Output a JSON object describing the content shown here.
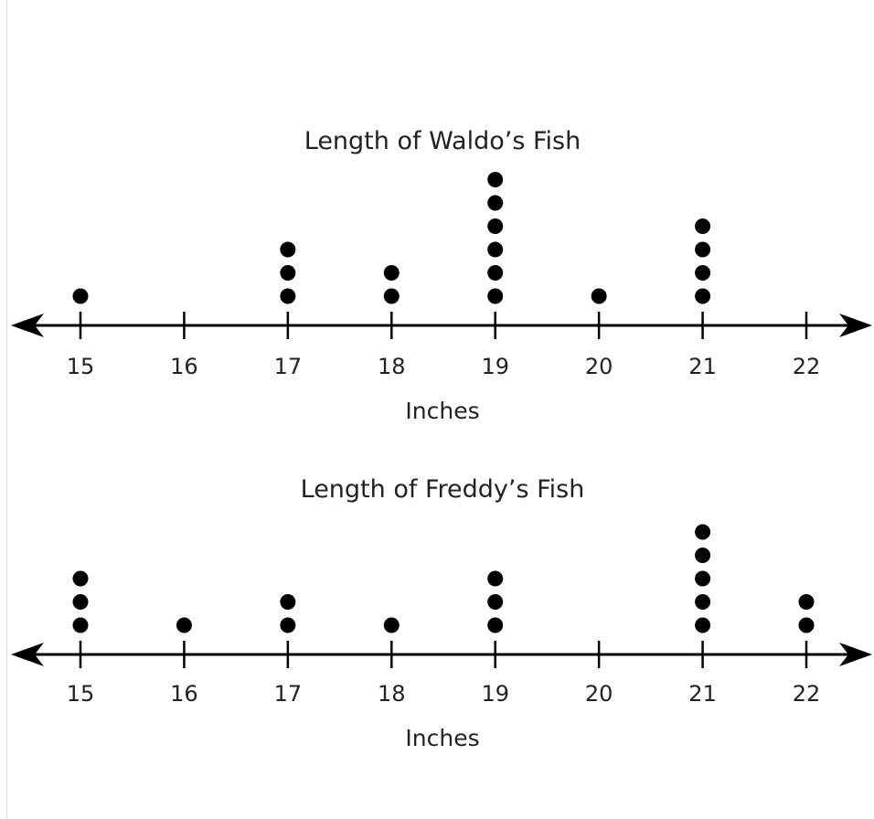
{
  "chart_data": [
    {
      "type": "dot-plot",
      "title": "Length of Waldo’s Fish",
      "xlabel": "Inches",
      "categories": [
        15,
        16,
        17,
        18,
        19,
        20,
        21,
        22
      ],
      "tick_labels": [
        "15",
        "16",
        "17",
        "18",
        "19",
        "20",
        "21",
        "22"
      ],
      "values": [
        1,
        0,
        3,
        2,
        6,
        1,
        4,
        0
      ],
      "xlim": [
        15,
        22
      ]
    },
    {
      "type": "dot-plot",
      "title": "Length of Freddy’s Fish",
      "xlabel": "Inches",
      "categories": [
        15,
        16,
        17,
        18,
        19,
        20,
        21,
        22
      ],
      "tick_labels": [
        "15",
        "16",
        "17",
        "18",
        "19",
        "20",
        "21",
        "22"
      ],
      "values": [
        3,
        1,
        2,
        1,
        3,
        0,
        5,
        2
      ],
      "xlim": [
        15,
        22
      ]
    }
  ],
  "colors": {
    "dots": "#000000",
    "axis": "#000000"
  }
}
